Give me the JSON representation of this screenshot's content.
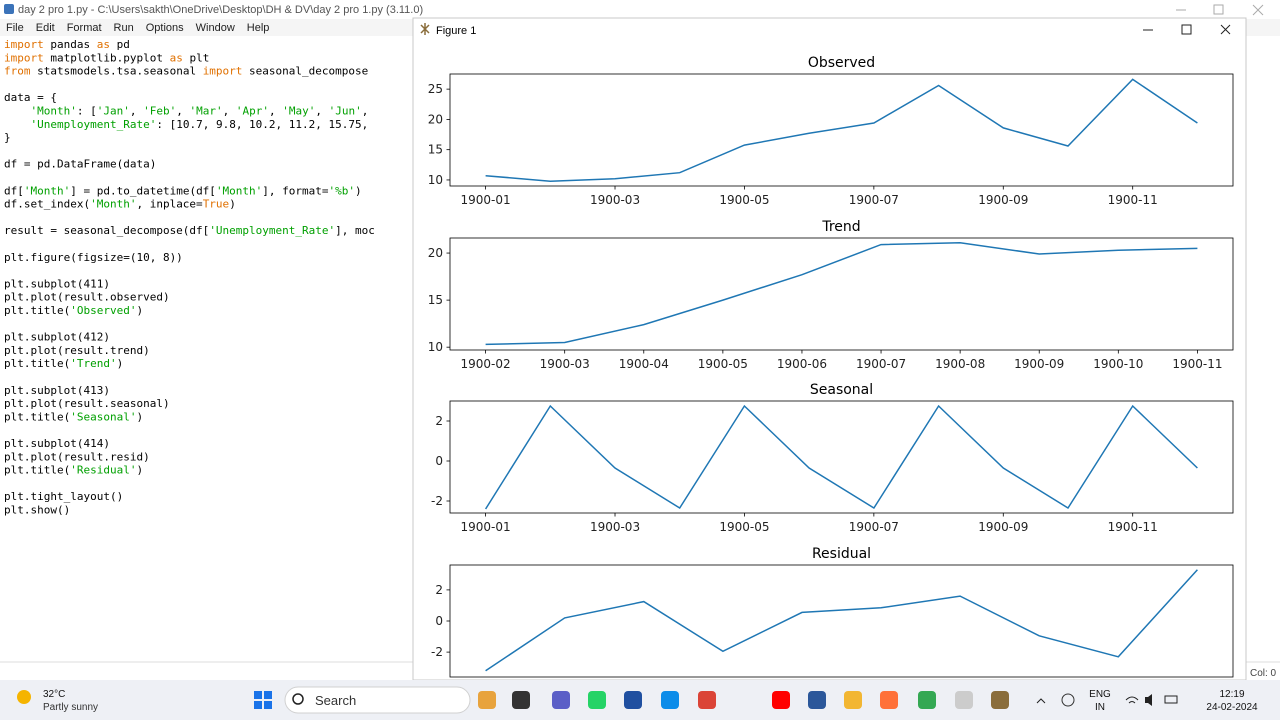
{
  "editor": {
    "title": "day 2 pro 1.py - C:\\Users\\sakth\\OneDrive\\Desktop\\DH & DV\\day 2 pro 1.py (3.11.0)",
    "menu": [
      "File",
      "Edit",
      "Format",
      "Run",
      "Options",
      "Window",
      "Help"
    ],
    "code": [
      [
        "import pandas as pd",
        "import matplotlib.pyplot as plt",
        "from statsmodels.tsa.seasonal import seasonal_decompose"
      ],
      [
        "data = {",
        "    'Month': ['Jan', 'Feb', 'Mar', 'Apr', 'May', 'Jun',",
        "    'Unemployment_Rate': [10.7, 9.8, 10.2, 11.2, 15.75,",
        "}"
      ],
      [
        "df = pd.DataFrame(data)"
      ],
      [
        "df['Month'] = pd.to_datetime(df['Month'], format='%b')",
        "df.set_index('Month', inplace=True)"
      ],
      [
        "result = seasonal_decompose(df['Unemployment_Rate'], moc"
      ],
      [
        "plt.figure(figsize=(10, 8))"
      ],
      [
        "plt.subplot(411)",
        "plt.plot(result.observed)",
        "plt.title('Observed')"
      ],
      [
        "plt.subplot(412)",
        "plt.plot(result.trend)",
        "plt.title('Trend')"
      ],
      [
        "plt.subplot(413)",
        "plt.plot(result.seasonal)",
        "plt.title('Seasonal')"
      ],
      [
        "plt.subplot(414)",
        "plt.plot(result.resid)",
        "plt.title('Residual')"
      ],
      [
        "plt.tight_layout()",
        "plt.show()"
      ]
    ],
    "status": "Col: 0"
  },
  "figure": {
    "title": "Figure 1"
  },
  "chart_data": [
    {
      "type": "line",
      "title": "Observed",
      "color": "#1f77b4",
      "x": [
        "1900-01",
        "1900-02",
        "1900-03",
        "1900-04",
        "1900-05",
        "1900-06",
        "1900-07",
        "1900-08",
        "1900-09",
        "1900-10",
        "1900-11",
        "1900-12"
      ],
      "values": [
        10.7,
        9.8,
        10.2,
        11.2,
        15.75,
        17.7,
        19.4,
        25.6,
        18.6,
        15.6,
        26.6,
        19.4
      ],
      "xticks": [
        "1900-01",
        "1900-03",
        "1900-05",
        "1900-07",
        "1900-09",
        "1900-11"
      ],
      "ylim": [
        9.0,
        27.5
      ],
      "yticks": [
        10,
        15,
        20,
        25
      ]
    },
    {
      "type": "line",
      "title": "Trend",
      "color": "#1f77b4",
      "x": [
        "1900-02",
        "1900-03",
        "1900-04",
        "1900-05",
        "1900-06",
        "1900-07",
        "1900-08",
        "1900-09",
        "1900-10",
        "1900-11"
      ],
      "values": [
        10.3,
        10.5,
        12.4,
        15.0,
        17.7,
        20.9,
        21.1,
        19.9,
        20.3,
        20.5
      ],
      "xticks": [
        "1900-02",
        "1900-03",
        "1900-04",
        "1900-05",
        "1900-06",
        "1900-07",
        "1900-08",
        "1900-09",
        "1900-10",
        "1900-11"
      ],
      "ylim": [
        9.7,
        21.6
      ],
      "yticks": [
        10,
        15,
        20
      ]
    },
    {
      "type": "line",
      "title": "Seasonal",
      "color": "#1f77b4",
      "x": [
        "1900-01",
        "1900-02",
        "1900-03",
        "1900-04",
        "1900-05",
        "1900-06",
        "1900-07",
        "1900-08",
        "1900-09",
        "1900-10",
        "1900-11",
        "1900-12"
      ],
      "values": [
        -2.4,
        2.75,
        -0.35,
        -2.35,
        2.75,
        -0.35,
        -2.35,
        2.75,
        -0.35,
        -2.35,
        2.75,
        -0.35
      ],
      "xticks": [
        "1900-01",
        "1900-03",
        "1900-05",
        "1900-07",
        "1900-09",
        "1900-11"
      ],
      "ylim": [
        -2.6,
        3.0
      ],
      "yticks": [
        -2,
        0,
        2
      ]
    },
    {
      "type": "line",
      "title": "Residual",
      "color": "#1f77b4",
      "x": [
        "1900-02",
        "1900-03",
        "1900-04",
        "1900-05",
        "1900-06",
        "1900-07",
        "1900-08",
        "1900-09",
        "1900-10",
        "1900-11"
      ],
      "values": [
        -3.2,
        0.2,
        1.25,
        -1.95,
        0.55,
        0.85,
        1.6,
        -0.95,
        -2.3,
        3.3
      ],
      "ylim": [
        -3.6,
        3.6
      ],
      "yticks": [
        -2,
        0,
        2
      ]
    }
  ],
  "taskbar": {
    "temperature": "32°C",
    "weather": "Partly sunny",
    "search": "Search",
    "language": "ENG",
    "region": "IN",
    "time": "12:19",
    "date": "24-02-2024"
  }
}
